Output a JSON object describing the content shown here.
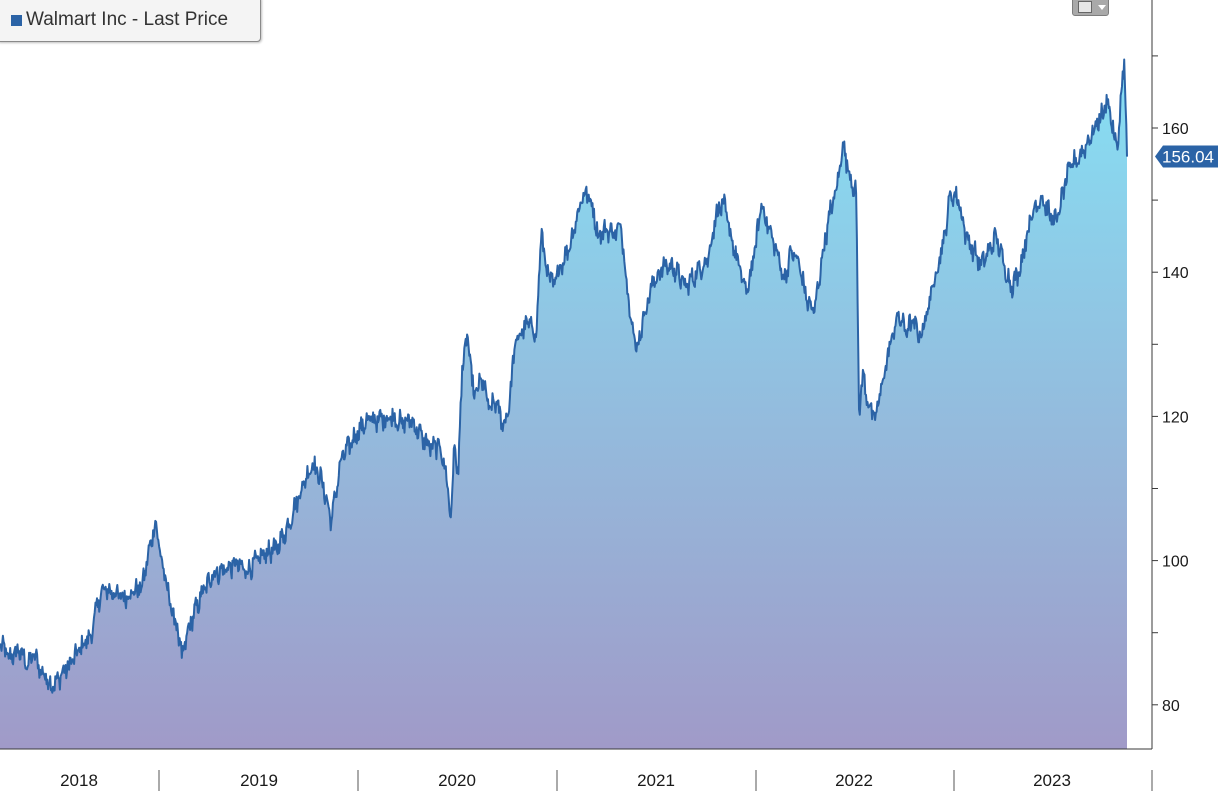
{
  "legend": {
    "label": "Walmart Inc - Last Price",
    "swatch_color": "#2b63a6"
  },
  "toolbar": {
    "chart_type_icon": "line-chart-icon",
    "dropdown_icon": "chevron-down-icon"
  },
  "colors": {
    "line": "#2b63a6",
    "fill_top": "#86e0f4",
    "fill_bottom": "#a09ac8",
    "axis": "#3a3a3a",
    "price_tag": "#2b63a6"
  },
  "chart_data": {
    "type": "area",
    "title": "",
    "xlabel": "",
    "ylabel": "",
    "series": [
      {
        "name": "Walmart Inc - Last Price",
        "last_value": "156.04"
      }
    ],
    "x_ticks": [
      "2018",
      "2019",
      "2020",
      "2021",
      "2022",
      "2023"
    ],
    "y_ticks": [
      80,
      100,
      120,
      140,
      160
    ],
    "ylim": [
      74,
      178
    ],
    "xlim": [
      2017.8,
      2023.75
    ],
    "grid": false,
    "legend_position": "top-left",
    "anchors": [
      [
        2017.8,
        88.5
      ],
      [
        2017.85,
        86.5
      ],
      [
        2017.9,
        87.5
      ],
      [
        2017.95,
        85.5
      ],
      [
        2017.98,
        87.0
      ],
      [
        2018.02,
        84.5
      ],
      [
        2018.05,
        83.5
      ],
      [
        2018.08,
        82.5
      ],
      [
        2018.12,
        84.0
      ],
      [
        2018.18,
        86.0
      ],
      [
        2018.24,
        88.5
      ],
      [
        2018.28,
        89.5
      ],
      [
        2018.32,
        94.5
      ],
      [
        2018.35,
        96.0
      ],
      [
        2018.4,
        95.5
      ],
      [
        2018.45,
        95.0
      ],
      [
        2018.5,
        95.5
      ],
      [
        2018.55,
        96.5
      ],
      [
        2018.62,
        105.5
      ],
      [
        2018.66,
        99.0
      ],
      [
        2018.7,
        94.0
      ],
      [
        2018.74,
        90.0
      ],
      [
        2018.76,
        86.5
      ],
      [
        2018.8,
        91.0
      ],
      [
        2018.86,
        95.0
      ],
      [
        2018.92,
        98.0
      ],
      [
        2019.0,
        99.0
      ],
      [
        2019.05,
        99.5
      ],
      [
        2019.1,
        98.5
      ],
      [
        2019.2,
        101.0
      ],
      [
        2019.25,
        101.5
      ],
      [
        2019.3,
        103.5
      ],
      [
        2019.35,
        107.0
      ],
      [
        2019.4,
        110.5
      ],
      [
        2019.45,
        113.5
      ],
      [
        2019.5,
        111.0
      ],
      [
        2019.55,
        105.5
      ],
      [
        2019.6,
        114.0
      ],
      [
        2019.68,
        117.5
      ],
      [
        2019.74,
        119.5
      ],
      [
        2019.8,
        119.5
      ],
      [
        2019.88,
        120.0
      ],
      [
        2019.92,
        119.0
      ],
      [
        2019.97,
        119.5
      ],
      [
        2020.03,
        117.0
      ],
      [
        2020.08,
        115.5
      ],
      [
        2020.12,
        116.0
      ],
      [
        2020.15,
        113.0
      ],
      [
        2020.18,
        106.0
      ],
      [
        2020.2,
        116.0
      ],
      [
        2020.22,
        112.0
      ],
      [
        2020.24,
        127.0
      ],
      [
        2020.27,
        131.0
      ],
      [
        2020.3,
        123.0
      ],
      [
        2020.35,
        125.0
      ],
      [
        2020.38,
        121.0
      ],
      [
        2020.42,
        122.0
      ],
      [
        2020.45,
        119.0
      ],
      [
        2020.48,
        120.0
      ],
      [
        2020.52,
        130.0
      ],
      [
        2020.56,
        132.0
      ],
      [
        2020.6,
        133.0
      ],
      [
        2020.63,
        131.0
      ],
      [
        2020.66,
        146.0
      ],
      [
        2020.68,
        141.0
      ],
      [
        2020.72,
        138.0
      ],
      [
        2020.76,
        141.0
      ],
      [
        2020.8,
        143.0
      ],
      [
        2020.84,
        147.0
      ],
      [
        2020.88,
        151.0
      ],
      [
        2020.92,
        150.0
      ],
      [
        2020.96,
        145.0
      ],
      [
        2021.0,
        146.0
      ],
      [
        2021.04,
        145.5
      ],
      [
        2021.08,
        146.0
      ],
      [
        2021.12,
        136.0
      ],
      [
        2021.16,
        129.0
      ],
      [
        2021.2,
        134.0
      ],
      [
        2021.24,
        138.0
      ],
      [
        2021.28,
        140.0
      ],
      [
        2021.32,
        141.0
      ],
      [
        2021.36,
        140.5
      ],
      [
        2021.42,
        138.0
      ],
      [
        2021.48,
        140.0
      ],
      [
        2021.54,
        142.0
      ],
      [
        2021.58,
        148.0
      ],
      [
        2021.62,
        149.5
      ],
      [
        2021.66,
        145.0
      ],
      [
        2021.7,
        141.0
      ],
      [
        2021.74,
        137.0
      ],
      [
        2021.78,
        142.0
      ],
      [
        2021.82,
        149.5
      ],
      [
        2021.86,
        146.0
      ],
      [
        2021.9,
        143.0
      ],
      [
        2021.94,
        139.0
      ],
      [
        2021.98,
        143.0
      ],
      [
        2022.02,
        141.0
      ],
      [
        2022.06,
        136.0
      ],
      [
        2022.1,
        134.5
      ],
      [
        2022.14,
        142.0
      ],
      [
        2022.18,
        148.0
      ],
      [
        2022.22,
        152.0
      ],
      [
        2022.25,
        158.0
      ],
      [
        2022.28,
        154.0
      ],
      [
        2022.32,
        151.0
      ],
      [
        2022.335,
        121.0
      ],
      [
        2022.36,
        126.0
      ],
      [
        2022.38,
        122.0
      ],
      [
        2022.42,
        119.5
      ],
      [
        2022.46,
        125.0
      ],
      [
        2022.5,
        130.0
      ],
      [
        2022.54,
        134.0
      ],
      [
        2022.58,
        132.0
      ],
      [
        2022.62,
        133.0
      ],
      [
        2022.66,
        131.0
      ],
      [
        2022.7,
        135.0
      ],
      [
        2022.74,
        140.0
      ],
      [
        2022.78,
        144.0
      ],
      [
        2022.82,
        151.0
      ],
      [
        2022.86,
        150.0
      ],
      [
        2022.9,
        145.0
      ],
      [
        2022.94,
        143.0
      ],
      [
        2022.98,
        141.0
      ],
      [
        2023.02,
        143.0
      ],
      [
        2023.06,
        145.0
      ],
      [
        2023.1,
        141.0
      ],
      [
        2023.14,
        138.0
      ],
      [
        2023.18,
        140.0
      ],
      [
        2023.22,
        145.0
      ],
      [
        2023.26,
        149.0
      ],
      [
        2023.3,
        150.5
      ],
      [
        2023.34,
        148.0
      ],
      [
        2023.38,
        147.0
      ],
      [
        2023.42,
        152.0
      ],
      [
        2023.46,
        155.0
      ],
      [
        2023.5,
        156.0
      ],
      [
        2023.54,
        158.0
      ],
      [
        2023.58,
        160.0
      ],
      [
        2023.62,
        162.0
      ],
      [
        2023.65,
        164.0
      ],
      [
        2023.68,
        159.0
      ],
      [
        2023.7,
        157.0
      ],
      [
        2023.72,
        165.0
      ],
      [
        2023.735,
        169.5
      ],
      [
        2023.75,
        156.04
      ]
    ]
  }
}
